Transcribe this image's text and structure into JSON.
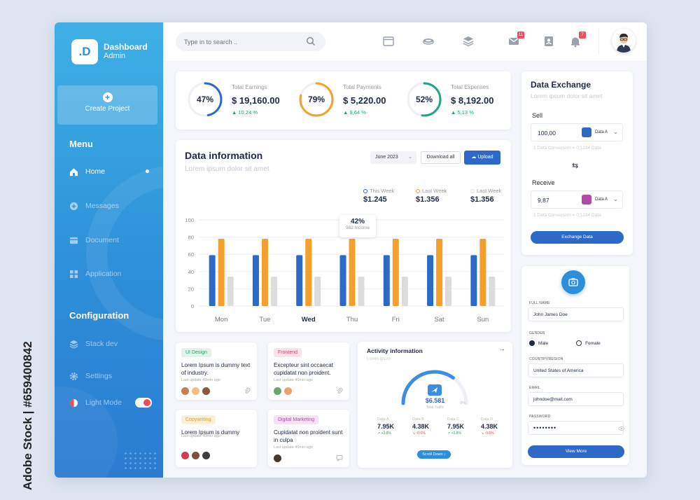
{
  "watermark": "Adobe Stock | #659400842",
  "app": {
    "logo_letter": ".D",
    "title": "Dashboard",
    "subtitle": "Admin"
  },
  "sidebar": {
    "create_project": "Create Project",
    "menu_heading": "Menu",
    "menu_items": [
      {
        "label": "Home",
        "icon": "home-icon",
        "active": true
      },
      {
        "label": "Messages",
        "icon": "plus-circle-icon",
        "active": false
      },
      {
        "label": "Document",
        "icon": "folder-icon",
        "active": false
      },
      {
        "label": "Application",
        "icon": "grid-icon",
        "active": false
      }
    ],
    "config_heading": "Configuration",
    "config_items": [
      {
        "label": "Stack dev",
        "icon": "layers-icon"
      },
      {
        "label": "Settings",
        "icon": "gear-icon"
      },
      {
        "label": "Light Mode",
        "icon": "half-circle-icon",
        "toggle_on": true
      }
    ]
  },
  "topbar": {
    "search_placeholder": "Type in to search ..",
    "icons": [
      "window-icon",
      "database-icon",
      "stack-icon",
      "mail-icon",
      "contact-icon",
      "bell-icon"
    ],
    "mail_badge": "11",
    "bell_badge": "7"
  },
  "earnings": [
    {
      "label": "Total Earnings",
      "amount": "$ 19,160.00",
      "change": "▲ 10,24 %",
      "percent_text": "47%",
      "percent": 47,
      "color": "#2d6ac7"
    },
    {
      "label": "Total Payments",
      "amount": "$ 5,220.00",
      "change": "▲ 9,64 %",
      "percent_text": "79%",
      "percent": 79,
      "color": "#f5a02c"
    },
    {
      "label": "Total Expenses",
      "amount": "$ 8,192.00",
      "change": "▲ 5,13 %",
      "percent_text": "52%",
      "percent": 52,
      "color": "#1fa58a"
    }
  ],
  "data_info": {
    "title": "Data information",
    "subtitle": "Lorem ipsum dolor sit amet",
    "month": "June 2023",
    "download_label": "Download all",
    "upload_label": "Upload",
    "legend": [
      {
        "label": "This Week",
        "value": "$1.245",
        "color": "#2d6ac7"
      },
      {
        "label": "Last Week",
        "value": "$1.356",
        "color": "#f5a02c"
      },
      {
        "label": "Last Week",
        "value": "$1.356",
        "color": "#dcdcdc"
      }
    ],
    "tooltip_value": "42%",
    "tooltip_label": "982 Income"
  },
  "chart_data": {
    "type": "bar",
    "categories": [
      "Mon",
      "Tue",
      "Wed",
      "Thu",
      "Fri",
      "Sat",
      "Sun"
    ],
    "series": [
      {
        "name": "This Week",
        "values": [
          59,
          59,
          59,
          59,
          59,
          59,
          59
        ],
        "color": "#2d6ac7"
      },
      {
        "name": "Last Week",
        "values": [
          78,
          78,
          78,
          78,
          78,
          78,
          78
        ],
        "color": "#f5a02c"
      },
      {
        "name": "Last Week",
        "values": [
          34,
          34,
          34,
          34,
          34,
          34,
          34
        ],
        "color": "#dcdcdc"
      }
    ],
    "yticks": [
      0,
      20,
      40,
      60,
      80,
      100
    ],
    "ylim": [
      0,
      100
    ],
    "highlight_category": "Wed",
    "grid": true
  },
  "tasks": [
    {
      "tag": "UI Design",
      "tag_color": "#e1f4ea",
      "tag_text_color": "#2d9d68",
      "text": "Lorem Ipsum is dummy text of  industry.",
      "update": "Last update 40min ago",
      "avatars": [
        "#c47f55",
        "#f1c27d",
        "#8b5a3c"
      ]
    },
    {
      "tag": "Frontend",
      "tag_color": "#fbe3ea",
      "tag_text_color": "#d2486f",
      "text": "Excepteur sint occaecat cupidatat non proident.",
      "update": "Last update 40min ago",
      "avatars": [
        "#6aa56e",
        "#e2a66d"
      ]
    },
    {
      "tag": "Copywriting",
      "tag_color": "#fdf0d9",
      "tag_text_color": "#e09a2c",
      "text": "Lorem Ipsum is dummy",
      "update": "Last update 40min ago",
      "avatars": [
        "#d83a4a",
        "#7a5238",
        "#3d3d3d"
      ]
    },
    {
      "tag": "Digital Marketing",
      "tag_color": "#f5e3f3",
      "tag_text_color": "#b24aa5",
      "text": "Cupidatat non proident sunt in culpa",
      "update": "Last update 40min ago",
      "avatars": [
        "#4a3728"
      ]
    }
  ],
  "activity": {
    "title": "Activity information",
    "subtitle": "Lorem ipsum",
    "value": "$6.581",
    "value_label": "Total Traffic",
    "gauge_percent": 70,
    "gauge_right_label": "0%",
    "stats": [
      {
        "label": "Data A",
        "value": "7.95K",
        "change": "↗ +3.8%",
        "up": true
      },
      {
        "label": "Data B",
        "value": "4.38K",
        "change": "↘ -0.6%",
        "up": false
      },
      {
        "label": "Data C",
        "value": "7.95K",
        "change": "↗ +3.8%",
        "up": true
      },
      {
        "label": "Data D",
        "value": "4.38K",
        "change": "↘ -0.6%",
        "up": false
      }
    ],
    "button": "Scroll Down ↓"
  },
  "exchange": {
    "title": "Data Exchange",
    "subtitle": "Lorem ipsum dolor sit amet",
    "sell_label": "Sell",
    "sell_value": "100,00",
    "sell_coin": "Data A",
    "sell_conversion": "1 Data Conversion = 0,1234 Data",
    "receive_label": "Receive",
    "receive_value": "9,87",
    "receive_coin": "Data A",
    "receive_conversion": "1 Data Conversion = 0,1234 Data",
    "button": "Exchange Data"
  },
  "profile": {
    "full_name_label": "FULL NAME",
    "full_name": "John James Doe",
    "gender_label": "GENDER",
    "gender_male": "Male",
    "gender_female": "Female",
    "country_label": "COUNTRY/REGION",
    "country": "United States of America",
    "email_label": "EMAIL",
    "email": "johndoe@mail.com",
    "password_label": "PASSWORD",
    "password": "••••••••",
    "button": "View More"
  }
}
